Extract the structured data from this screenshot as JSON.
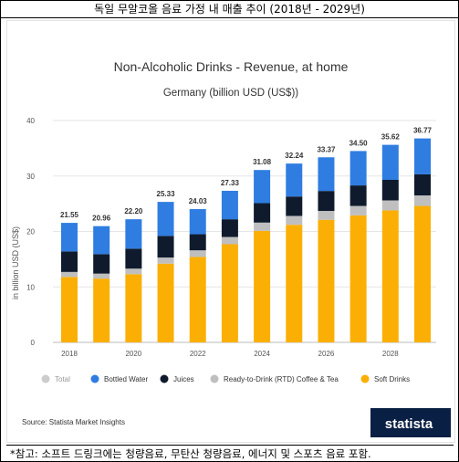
{
  "header": {
    "title": "독일 무알코올 음료 가정 내 매출 추이 (2018년 - 2029년)"
  },
  "chart_data": {
    "type": "bar",
    "stacked": true,
    "title": "Non-Alcoholic Drinks - Revenue, at home",
    "subtitle": "Germany (billion USD (US$))",
    "ylabel": "in billion USD (US$)",
    "ylim": [
      0,
      40
    ],
    "yticks": [
      0,
      10,
      20,
      30,
      40
    ],
    "grid": true,
    "legend_position": "bottom",
    "categories": [
      "2018",
      "2019",
      "2020",
      "2021",
      "2022",
      "2023",
      "2024",
      "2025",
      "2026",
      "2027",
      "2028",
      "2029"
    ],
    "x_tick_labels": [
      "2018",
      "2020",
      "2022",
      "2024",
      "2026",
      "2028"
    ],
    "totals": [
      21.55,
      20.96,
      22.2,
      25.33,
      24.03,
      27.33,
      31.08,
      32.24,
      33.37,
      34.5,
      35.62,
      36.77
    ],
    "series": [
      {
        "name": "Soft Drinks",
        "color": "#FBAF05",
        "values": [
          11.8,
          11.5,
          12.3,
          14.2,
          15.4,
          17.7,
          20.1,
          21.2,
          22.1,
          22.9,
          23.8,
          24.6
        ]
      },
      {
        "name": "Ready-to-Drink (RTD) Coffee & Tea",
        "color": "#BFBFBF",
        "values": [
          0.9,
          0.9,
          1.0,
          1.1,
          1.2,
          1.3,
          1.5,
          1.6,
          1.6,
          1.7,
          1.8,
          1.9
        ]
      },
      {
        "name": "Juices",
        "color": "#0F1B2D",
        "values": [
          3.7,
          3.5,
          3.6,
          3.9,
          2.9,
          3.2,
          3.5,
          3.5,
          3.6,
          3.7,
          3.7,
          3.8
        ]
      },
      {
        "name": "Bottled Water",
        "color": "#2F7DE1",
        "values": [
          5.15,
          5.06,
          5.3,
          6.13,
          4.53,
          5.13,
          5.98,
          5.94,
          6.07,
          6.2,
          6.32,
          6.47
        ]
      }
    ],
    "legend": [
      {
        "name": "Total",
        "color": "#CCCCCC"
      },
      {
        "name": "Bottled Water",
        "color": "#2F7DE1"
      },
      {
        "name": "Juices",
        "color": "#0F1B2D"
      },
      {
        "name": "Ready-to-Drink (RTD) Coffee & Tea",
        "color": "#BFBFBF"
      },
      {
        "name": "Soft Drinks",
        "color": "#FBAF05"
      }
    ],
    "source": "Source: Statista Market Insights",
    "brand": "statista",
    "brand_color": "#0A1F44"
  },
  "footnote": "*참고: 소프트 드링크에는 청량음료, 무탄산 청량음료, 에너지 및 스포츠 음료 포함."
}
